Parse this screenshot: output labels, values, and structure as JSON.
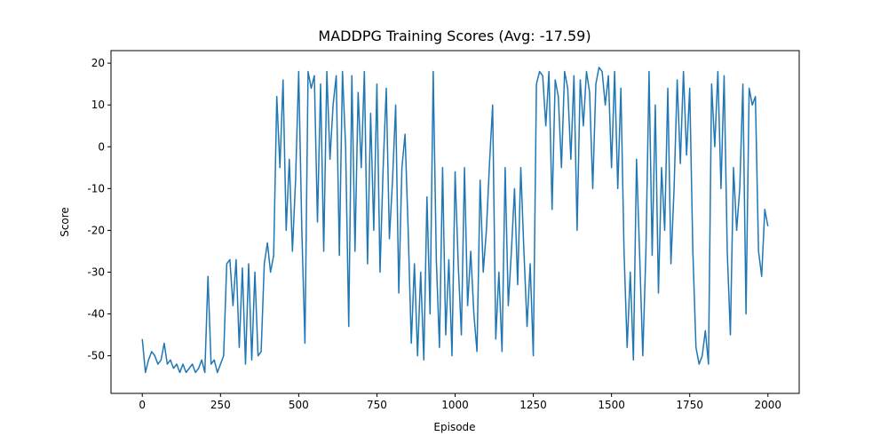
{
  "chart_data": {
    "type": "line",
    "title": "MADDPG Training Scores (Avg: -17.59)",
    "x_label": "Episode",
    "y_label": "Score",
    "x": [
      0,
      10,
      20,
      30,
      40,
      50,
      60,
      70,
      80,
      90,
      100,
      110,
      120,
      130,
      140,
      150,
      160,
      170,
      180,
      190,
      200,
      210,
      220,
      230,
      240,
      250,
      260,
      270,
      280,
      290,
      300,
      310,
      320,
      330,
      340,
      350,
      360,
      370,
      380,
      390,
      400,
      410,
      420,
      430,
      440,
      450,
      460,
      470,
      480,
      490,
      500,
      510,
      520,
      530,
      540,
      550,
      560,
      570,
      580,
      590,
      600,
      610,
      620,
      630,
      640,
      650,
      660,
      670,
      680,
      690,
      700,
      710,
      720,
      730,
      740,
      750,
      760,
      770,
      780,
      790,
      800,
      810,
      820,
      830,
      840,
      850,
      860,
      870,
      880,
      890,
      900,
      910,
      920,
      930,
      940,
      950,
      960,
      970,
      980,
      990,
      1000,
      1010,
      1020,
      1030,
      1040,
      1050,
      1060,
      1070,
      1080,
      1090,
      1100,
      1110,
      1120,
      1130,
      1140,
      1150,
      1160,
      1170,
      1180,
      1190,
      1200,
      1210,
      1220,
      1230,
      1240,
      1250,
      1260,
      1270,
      1280,
      1290,
      1300,
      1310,
      1320,
      1330,
      1340,
      1350,
      1360,
      1370,
      1380,
      1390,
      1400,
      1410,
      1420,
      1430,
      1440,
      1450,
      1460,
      1470,
      1480,
      1490,
      1500,
      1510,
      1520,
      1530,
      1540,
      1550,
      1560,
      1570,
      1580,
      1590,
      1600,
      1610,
      1620,
      1630,
      1640,
      1650,
      1660,
      1670,
      1680,
      1690,
      1700,
      1710,
      1720,
      1730,
      1740,
      1750,
      1760,
      1770,
      1780,
      1790,
      1800,
      1810,
      1820,
      1830,
      1840,
      1850,
      1860,
      1870,
      1880,
      1890,
      1900,
      1910,
      1920,
      1930,
      1940,
      1950,
      1960,
      1970,
      1980,
      1990,
      2000
    ],
    "series": [
      {
        "name": "Score",
        "color": "#1f77b4",
        "values": [
          -46,
          -54,
          -51,
          -49,
          -50,
          -52,
          -51,
          -47,
          -52,
          -51,
          -53,
          -52,
          -54,
          -52,
          -54,
          -53,
          -52,
          -54,
          -53,
          -51,
          -54,
          -31,
          -52,
          -51,
          -54,
          -52,
          -50,
          -28,
          -27,
          -38,
          -27,
          -48,
          -29,
          -52,
          -28,
          -51,
          -30,
          -50,
          -49,
          -28,
          -23,
          -30,
          -26,
          12,
          -5,
          16,
          -20,
          -3,
          -25,
          -8,
          18,
          -20,
          -47,
          18,
          14,
          17,
          -18,
          15,
          -25,
          18,
          -3,
          10,
          17,
          -26,
          18,
          0,
          -43,
          17,
          -25,
          13,
          -5,
          18,
          -28,
          8,
          -20,
          15,
          -30,
          -5,
          14,
          -22,
          -8,
          10,
          -35,
          -5,
          3,
          -20,
          -47,
          -28,
          -50,
          -30,
          -51,
          -12,
          -40,
          18,
          -27,
          -48,
          -5,
          -45,
          -27,
          -50,
          -6,
          -28,
          -45,
          -5,
          -38,
          -25,
          -40,
          -49,
          -8,
          -30,
          -20,
          -4,
          10,
          -46,
          -30,
          -49,
          -5,
          -38,
          -25,
          -10,
          -33,
          -5,
          -25,
          -43,
          -28,
          -50,
          15,
          18,
          17,
          5,
          18,
          -15,
          16,
          12,
          -5,
          18,
          14,
          -3,
          17,
          -20,
          16,
          5,
          18,
          13,
          -10,
          15,
          19,
          18,
          10,
          17,
          -5,
          18,
          -10,
          14,
          -25,
          -48,
          -30,
          -51,
          -3,
          -26,
          -50,
          -25,
          18,
          -26,
          10,
          -35,
          -5,
          -20,
          14,
          -28,
          -10,
          16,
          -4,
          18,
          -2,
          14,
          -25,
          -48,
          -52,
          -50,
          -44,
          -52,
          15,
          0,
          18,
          -10,
          17,
          -25,
          -45,
          -5,
          -20,
          -10,
          15,
          -40,
          14,
          10,
          12,
          -25,
          -31,
          -15,
          -19
        ]
      }
    ],
    "xlim": [
      -100,
      2100
    ],
    "ylim": [
      -59,
      23
    ],
    "xticks": [
      0,
      250,
      500,
      750,
      1000,
      1250,
      1500,
      1750,
      2000
    ],
    "yticks": [
      -50,
      -40,
      -30,
      -20,
      -10,
      0,
      10,
      20
    ]
  }
}
